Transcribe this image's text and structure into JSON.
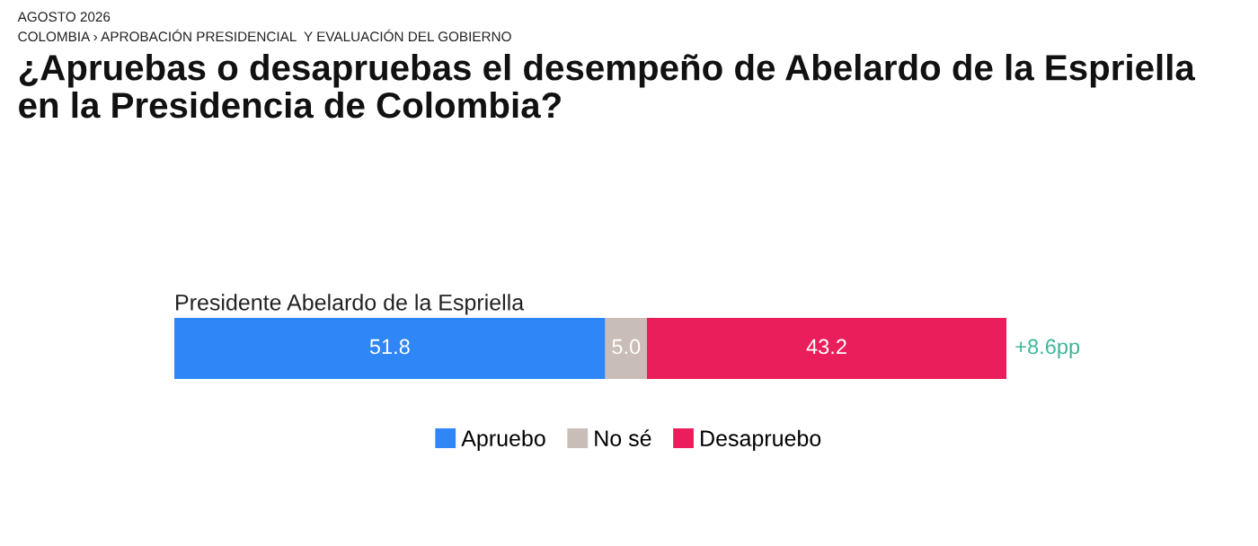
{
  "chart_data": {
    "type": "bar",
    "orientation": "horizontal",
    "stacked": true,
    "title": "¿Apruebas o desapruebas el desempeño de Abelardo de la Espriella\nen la Presidencia de Colombia?",
    "categories": [
      "Presidente Abelardo de la Espriella"
    ],
    "series": [
      {
        "name": "Apruebo",
        "color": "#2f86f6",
        "values": [
          51.8
        ],
        "value_labels": [
          "51.8"
        ]
      },
      {
        "name": "No sé",
        "color": "#c9bdb7",
        "values": [
          5.0
        ],
        "value_labels": [
          "5.0"
        ]
      },
      {
        "name": "Desapruebo",
        "color": "#e91e5a",
        "values": [
          43.2
        ],
        "value_labels": [
          "43.2"
        ]
      }
    ],
    "legend": "bottom",
    "annotations": [
      "AGOSTO 2026",
      "COLOMBIA › APROBACIÓN PRESIDENCIAL  Y EVALUACIÓN DEL GOBIERNO",
      "+8.6pp"
    ]
  }
}
